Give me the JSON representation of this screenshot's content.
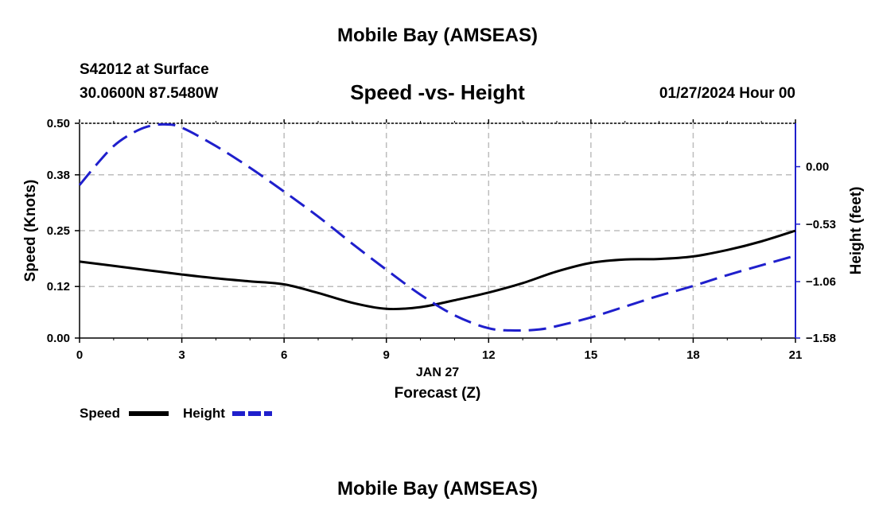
{
  "header": {
    "title": "Mobile Bay (AMSEAS)",
    "station": "S42012 at Surface",
    "coords": "30.0600N  87.5480W",
    "subtitle": "Speed -vs- Height",
    "datetime": "01/27/2024 Hour 00"
  },
  "footer": {
    "title": "Mobile Bay (AMSEAS)"
  },
  "chart_data": {
    "type": "line",
    "title": "Speed -vs- Height",
    "xlabel": "Forecast (Z)",
    "xlabel_date": "JAN 27",
    "ylabel": "Speed (Knots)",
    "y2label": "Height (feet)",
    "xlim": [
      0,
      21
    ],
    "ylim": [
      0,
      0.5
    ],
    "y2lim": [
      -1.58,
      0.4
    ],
    "x_ticks": [
      0,
      3,
      6,
      9,
      12,
      15,
      18,
      21
    ],
    "y_ticks": [
      0.0,
      0.12,
      0.25,
      0.38,
      0.5
    ],
    "y_tick_labels": [
      "0.00",
      "0.12",
      "0.25",
      "0.38",
      "0.50"
    ],
    "y2_ticks": [
      0.0,
      -0.53,
      -1.06,
      -1.58
    ],
    "y2_tick_labels": [
      "0.00",
      "−0.53",
      "−1.06",
      "−1.58"
    ],
    "grid": true,
    "legend": "bottom-left",
    "series": [
      {
        "name": "Speed",
        "axis": "left",
        "color": "#000000",
        "style": "solid",
        "x": [
          0,
          1,
          2,
          3,
          4,
          5,
          6,
          7,
          8,
          9,
          10,
          11,
          12,
          13,
          14,
          15,
          16,
          17,
          18,
          19,
          20,
          21
        ],
        "values": [
          0.178,
          0.168,
          0.158,
          0.148,
          0.139,
          0.132,
          0.125,
          0.105,
          0.082,
          0.068,
          0.072,
          0.088,
          0.106,
          0.128,
          0.155,
          0.175,
          0.183,
          0.184,
          0.19,
          0.205,
          0.225,
          0.25
        ]
      },
      {
        "name": "Height",
        "axis": "right",
        "color": "#1f1fcc",
        "style": "dashed",
        "x": [
          0,
          0.5,
          1,
          1.5,
          2,
          2.5,
          3,
          4,
          5,
          6,
          7,
          8,
          9,
          10,
          11,
          12,
          12.8,
          13.5,
          14,
          15,
          16,
          17,
          18,
          19,
          20,
          21
        ],
        "values": [
          -0.17,
          0.02,
          0.19,
          0.3,
          0.37,
          0.39,
          0.36,
          0.19,
          -0.01,
          -0.23,
          -0.46,
          -0.71,
          -0.95,
          -1.18,
          -1.37,
          -1.49,
          -1.51,
          -1.5,
          -1.47,
          -1.39,
          -1.29,
          -1.19,
          -1.1,
          -1.0,
          -0.91,
          -0.82
        ]
      }
    ]
  }
}
